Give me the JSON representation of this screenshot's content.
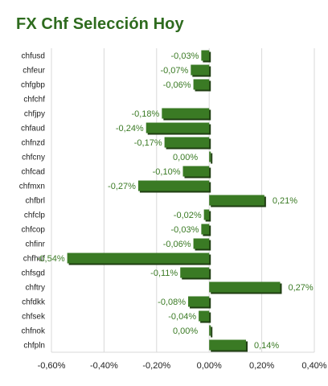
{
  "chart_data": {
    "type": "bar",
    "orientation": "horizontal",
    "title": "FX Chf Selección Hoy",
    "categories": [
      "chfusd",
      "chfeur",
      "chfgbp",
      "chfchf",
      "chfjpy",
      "chfaud",
      "chfnzd",
      "chfcny",
      "chfcad",
      "chfmxn",
      "chfbrl",
      "chfclp",
      "chfcop",
      "chfinr",
      "chfhuf",
      "chfsgd",
      "chftry",
      "chfdkk",
      "chfsek",
      "chfnok",
      "chfpln"
    ],
    "values": [
      -0.03,
      -0.07,
      -0.06,
      null,
      -0.18,
      -0.24,
      -0.17,
      0.0,
      -0.1,
      -0.27,
      0.21,
      -0.02,
      -0.03,
      -0.06,
      -0.54,
      -0.11,
      0.27,
      -0.08,
      -0.04,
      0.0,
      0.14
    ],
    "labels": [
      "-0,03%",
      "-0,07%",
      "-0,06%",
      "",
      "-0,18%",
      "-0,24%",
      "-0,17%",
      "0,00%",
      "-0,10%",
      "-0,27%",
      "0,21%",
      "-0,02%",
      "-0,03%",
      "-0,06%",
      "-0,54%",
      "-0,11%",
      "0,27%",
      "-0,08%",
      "-0,04%",
      "0,00%",
      "0,14%"
    ],
    "xlim": [
      -0.6,
      0.4
    ],
    "ticks": [
      -0.6,
      -0.4,
      -0.2,
      0.0,
      0.2,
      0.4
    ],
    "tick_labels": [
      "-0,60%",
      "-0,40%",
      "-0,20%",
      "0,00%",
      "0,20%",
      "0,40%"
    ],
    "grid": true,
    "legend": "none",
    "bar_color": "#3a7a24",
    "bar_shadow_color": "#1f3d12",
    "grid_color": "#d9d9d9",
    "title_color": "#2e6b1e"
  }
}
